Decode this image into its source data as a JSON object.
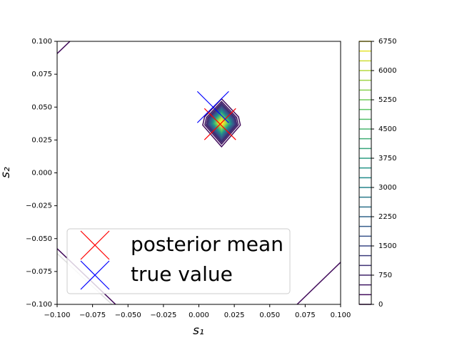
{
  "chart_data": {
    "type": "contour",
    "xlabel": "s₁",
    "ylabel": "s₂",
    "xlim": [
      -0.1,
      0.1
    ],
    "ylim": [
      -0.1,
      0.1
    ],
    "xticks": [
      {
        "value": -0.1,
        "label": "−0.100"
      },
      {
        "value": -0.075,
        "label": "−0.075"
      },
      {
        "value": -0.05,
        "label": "−0.050"
      },
      {
        "value": -0.025,
        "label": "−0.025"
      },
      {
        "value": 0,
        "label": "0.000"
      },
      {
        "value": 0.025,
        "label": "0.025"
      },
      {
        "value": 0.05,
        "label": "0.050"
      },
      {
        "value": 0.075,
        "label": "0.075"
      },
      {
        "value": 0.1,
        "label": "0.100"
      }
    ],
    "yticks": [
      {
        "value": -0.1,
        "label": "−0.100"
      },
      {
        "value": -0.075,
        "label": "−0.075"
      },
      {
        "value": -0.05,
        "label": "−0.050"
      },
      {
        "value": -0.025,
        "label": "−0.025"
      },
      {
        "value": 0,
        "label": "0.000"
      },
      {
        "value": 0.025,
        "label": "0.025"
      },
      {
        "value": 0.05,
        "label": "0.050"
      },
      {
        "value": 0.075,
        "label": "0.075"
      },
      {
        "value": 0.1,
        "label": "0.100"
      }
    ],
    "colormap": "viridis",
    "levels": [
      0,
      250,
      500,
      750,
      1000,
      1250,
      1500,
      1750,
      2000,
      2250,
      2500,
      2750,
      3000,
      3250,
      3500,
      3750,
      4000,
      4250,
      4500,
      4750,
      5000,
      5250,
      5500,
      5750,
      6000,
      6250,
      6500,
      6750
    ],
    "clim": [
      0,
      6750
    ],
    "cticks": [
      0,
      750,
      1500,
      2250,
      3000,
      3750,
      4500,
      5250,
      6000,
      6750
    ],
    "series": [
      {
        "name": "posterior mean",
        "color": "#ff0000",
        "x": [
          0.015
        ],
        "values": [
          0.037
        ]
      },
      {
        "name": "true value",
        "color": "#0000ff",
        "x": [
          0.01
        ],
        "values": [
          0.05
        ]
      }
    ],
    "legend": "lower left"
  }
}
